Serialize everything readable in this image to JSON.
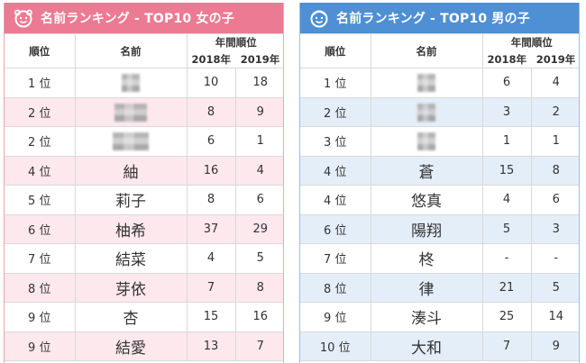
{
  "colors": {
    "girls_header": "#ec7a92",
    "boys_header": "#4f8fd4",
    "girls_row_alt": "#fde8ee",
    "boys_row_alt": "#e4eef9"
  },
  "girls": {
    "title": "名前ランキング - TOP10 女の子",
    "icon": "smiley-face-icon",
    "headers": {
      "rank": "順位",
      "name": "名前",
      "group": "年間順位",
      "y2018": "2018年",
      "y2019": "2019年"
    },
    "rows": [
      {
        "rank": "1 位",
        "name": "",
        "blurred": true,
        "y2018": "10",
        "y2019": "18"
      },
      {
        "rank": "2 位",
        "name": "",
        "blurred": true,
        "y2018": "8",
        "y2019": "9"
      },
      {
        "rank": "2 位",
        "name": "",
        "blurred": true,
        "y2018": "6",
        "y2019": "1"
      },
      {
        "rank": "4 位",
        "name": "紬",
        "blurred": false,
        "y2018": "16",
        "y2019": "4"
      },
      {
        "rank": "5 位",
        "name": "莉子",
        "blurred": false,
        "y2018": "8",
        "y2019": "6"
      },
      {
        "rank": "6 位",
        "name": "柚希",
        "blurred": false,
        "y2018": "37",
        "y2019": "29"
      },
      {
        "rank": "7 位",
        "name": "結菜",
        "blurred": false,
        "y2018": "4",
        "y2019": "5"
      },
      {
        "rank": "8 位",
        "name": "芽依",
        "blurred": false,
        "y2018": "7",
        "y2019": "8"
      },
      {
        "rank": "9 位",
        "name": "杏",
        "blurred": false,
        "y2018": "15",
        "y2019": "16"
      },
      {
        "rank": "9 位",
        "name": "結愛",
        "blurred": false,
        "y2018": "13",
        "y2019": "7"
      }
    ]
  },
  "boys": {
    "title": "名前ランキング - TOP10 男の子",
    "icon": "smiley-face-icon",
    "headers": {
      "rank": "順位",
      "name": "名前",
      "group": "年間順位",
      "y2018": "2018年",
      "y2019": "2019年"
    },
    "rows": [
      {
        "rank": "1 位",
        "name": "",
        "blurred": true,
        "y2018": "6",
        "y2019": "4"
      },
      {
        "rank": "2 位",
        "name": "",
        "blurred": true,
        "y2018": "3",
        "y2019": "2"
      },
      {
        "rank": "3 位",
        "name": "",
        "blurred": true,
        "y2018": "1",
        "y2019": "1"
      },
      {
        "rank": "4 位",
        "name": "蒼",
        "blurred": false,
        "y2018": "15",
        "y2019": "8"
      },
      {
        "rank": "4 位",
        "name": "悠真",
        "blurred": false,
        "y2018": "4",
        "y2019": "6"
      },
      {
        "rank": "6 位",
        "name": "陽翔",
        "blurred": false,
        "y2018": "5",
        "y2019": "3"
      },
      {
        "rank": "7 位",
        "name": "柊",
        "blurred": false,
        "y2018": "-",
        "y2019": "-"
      },
      {
        "rank": "8 位",
        "name": "律",
        "blurred": false,
        "y2018": "21",
        "y2019": "5"
      },
      {
        "rank": "9 位",
        "name": "湊斗",
        "blurred": false,
        "y2018": "25",
        "y2019": "14"
      },
      {
        "rank": "10 位",
        "name": "大和",
        "blurred": false,
        "y2018": "7",
        "y2019": "9"
      }
    ]
  }
}
